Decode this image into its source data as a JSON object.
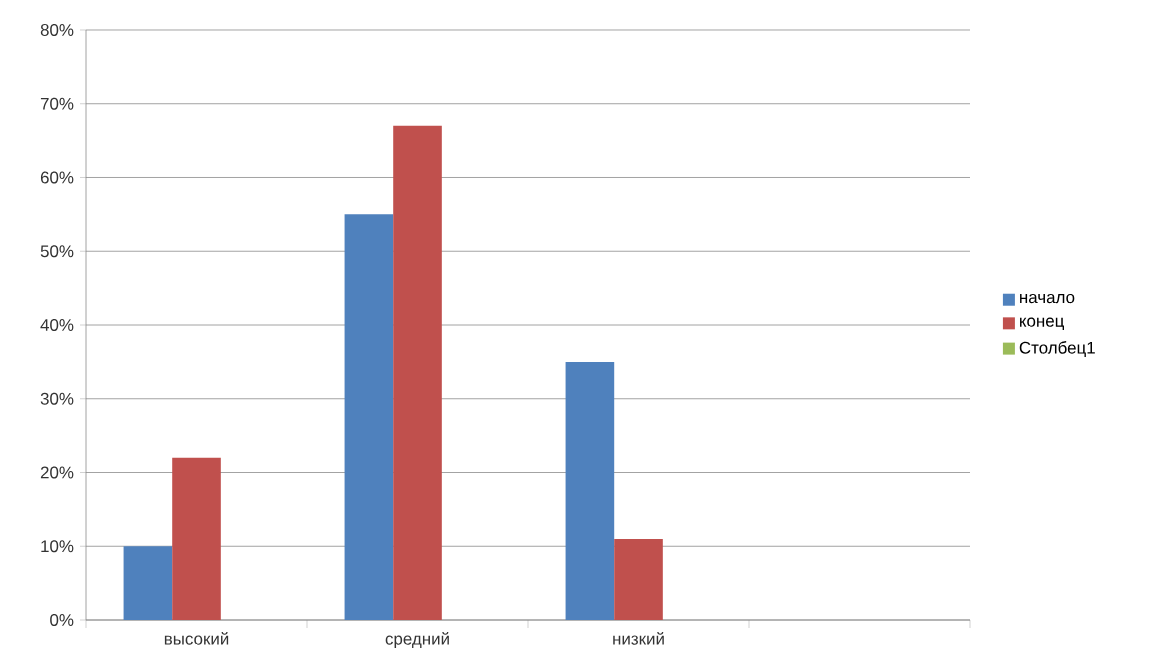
{
  "chart_data": {
    "type": "bar",
    "categories": [
      "высокий",
      "средний",
      "низкий",
      null
    ],
    "series": [
      {
        "name": "начало",
        "color": "#4f81bd",
        "values": [
          10,
          55,
          35,
          null
        ]
      },
      {
        "name": "конец",
        "color": "#c0504d",
        "values": [
          22,
          67,
          11,
          null
        ]
      },
      {
        "name": "Столбец1",
        "color": "#9bbb59",
        "values": [
          null,
          null,
          null,
          null
        ]
      }
    ],
    "ylim": [
      0,
      80
    ],
    "yticks": [
      {
        "value": 0,
        "label": "0%"
      },
      {
        "value": 10,
        "label": "10%"
      },
      {
        "value": 20,
        "label": "20%"
      },
      {
        "value": 30,
        "label": "30%"
      },
      {
        "value": 40,
        "label": "40%"
      },
      {
        "value": 50,
        "label": "50%"
      },
      {
        "value": 60,
        "label": "60%"
      },
      {
        "value": 70,
        "label": "70%"
      },
      {
        "value": 80,
        "label": "80%"
      }
    ],
    "grid": "y",
    "legend": "right"
  }
}
